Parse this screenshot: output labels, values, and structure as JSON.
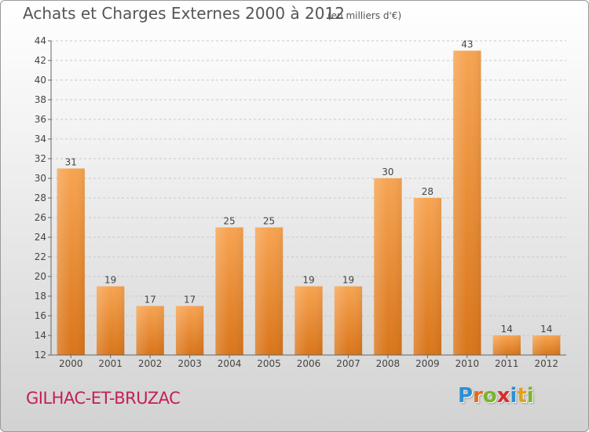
{
  "title": "Achats et Charges Externes 2000 à 2012",
  "subtitle": "(en milliers d'€)",
  "place": "GILHAC-ET-BRUZAC",
  "logo": {
    "letters": [
      "P",
      "r",
      "o",
      "x",
      "i",
      "t",
      "i"
    ],
    "colors": [
      "#2b8fd4",
      "#e06a1c",
      "#79b52a",
      "#d92b2b",
      "#2b8fd4",
      "#e0a01c",
      "#79b52a"
    ]
  },
  "colors": {
    "bar_light": "#f5a04a",
    "bar_dark": "#dd7a1e",
    "grid": "#c9c9c9",
    "place": "#c41e5a"
  },
  "chart_data": {
    "type": "bar",
    "categories": [
      "2000",
      "2001",
      "2002",
      "2003",
      "2004",
      "2005",
      "2006",
      "2007",
      "2008",
      "2009",
      "2010",
      "2011",
      "2012"
    ],
    "values": [
      31,
      19,
      17,
      17,
      25,
      25,
      19,
      19,
      30,
      28,
      43,
      14,
      14
    ],
    "title": "Achats et Charges Externes 2000 à 2012",
    "subtitle": "(en milliers d'€)",
    "xlabel": "",
    "ylabel": "",
    "ylim": [
      12,
      44
    ],
    "yticks": [
      12,
      14,
      16,
      18,
      20,
      22,
      24,
      26,
      28,
      30,
      32,
      34,
      36,
      38,
      40,
      42,
      44
    ],
    "grid": true,
    "data_labels": true
  }
}
